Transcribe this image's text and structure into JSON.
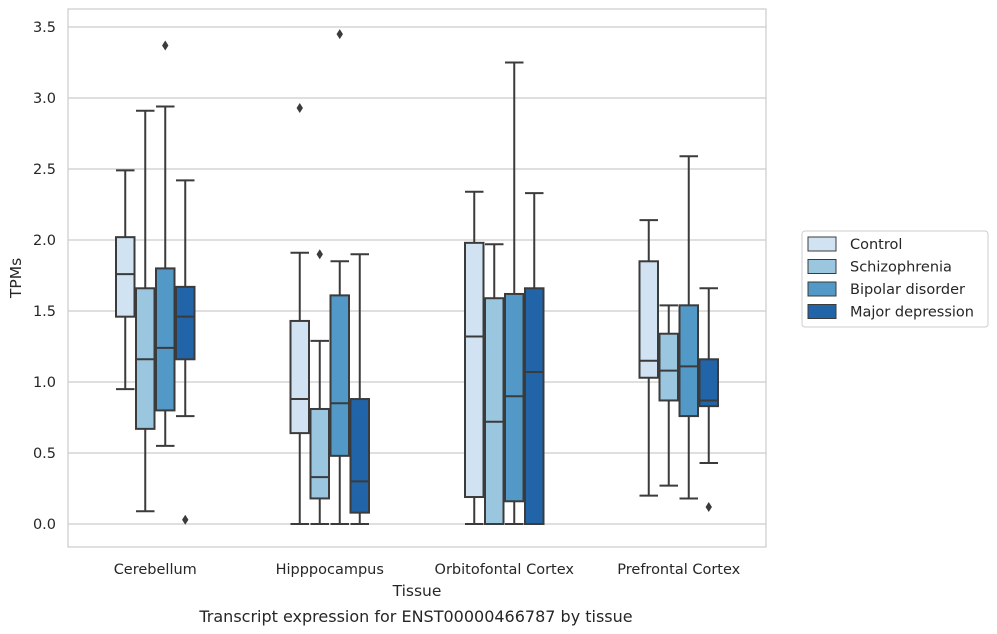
{
  "chart_data": {
    "type": "box",
    "title": "",
    "caption": "Transcript expression for ENST00000466787 by tissue",
    "xlabel": "Tissue",
    "ylabel": "TPMs",
    "ylim": [
      -0.17,
      3.62
    ],
    "yticks": [
      0.0,
      0.5,
      1.0,
      1.5,
      2.0,
      2.5,
      3.0,
      3.5
    ],
    "ytick_labels": [
      "0.0",
      "0.5",
      "1.0",
      "1.5",
      "2.0",
      "2.5",
      "3.0",
      "3.5"
    ],
    "grid": "horizontal",
    "legend_position": "right",
    "categories": [
      "Cerebellum",
      "Hipppocampus",
      "Orbitofontal Cortex",
      "Prefrontal Cortex"
    ],
    "series": [
      {
        "name": "Control",
        "color": "#d1e2f2",
        "boxes": [
          {
            "whisker_low": 0.95,
            "q1": 1.46,
            "median": 1.76,
            "q3": 2.02,
            "whisker_high": 2.49,
            "outliers": []
          },
          {
            "whisker_low": 0.0,
            "q1": 0.64,
            "median": 0.88,
            "q3": 1.43,
            "whisker_high": 1.91,
            "outliers": [
              2.93
            ]
          },
          {
            "whisker_low": 0.0,
            "q1": 0.19,
            "median": 1.32,
            "q3": 1.98,
            "whisker_high": 2.34,
            "outliers": []
          },
          {
            "whisker_low": 0.2,
            "q1": 1.03,
            "median": 1.15,
            "q3": 1.85,
            "whisker_high": 2.14,
            "outliers": []
          }
        ]
      },
      {
        "name": "Schizophrenia",
        "color": "#9ac7df",
        "boxes": [
          {
            "whisker_low": 0.09,
            "q1": 0.67,
            "median": 1.16,
            "q3": 1.66,
            "whisker_high": 2.91,
            "outliers": []
          },
          {
            "whisker_low": 0.0,
            "q1": 0.18,
            "median": 0.33,
            "q3": 0.81,
            "whisker_high": 1.29,
            "outliers": [
              1.9
            ]
          },
          {
            "whisker_low": 0.0,
            "q1": 0.0,
            "median": 0.72,
            "q3": 1.59,
            "whisker_high": 1.97,
            "outliers": []
          },
          {
            "whisker_low": 0.27,
            "q1": 0.87,
            "median": 1.08,
            "q3": 1.34,
            "whisker_high": 1.54,
            "outliers": []
          }
        ]
      },
      {
        "name": "Bipolar disorder",
        "color": "#5399c7",
        "boxes": [
          {
            "whisker_low": 0.55,
            "q1": 0.8,
            "median": 1.24,
            "q3": 1.8,
            "whisker_high": 2.94,
            "outliers": [
              3.37
            ]
          },
          {
            "whisker_low": 0.0,
            "q1": 0.48,
            "median": 0.85,
            "q3": 1.61,
            "whisker_high": 1.85,
            "outliers": [
              3.45
            ]
          },
          {
            "whisker_low": 0.0,
            "q1": 0.16,
            "median": 0.9,
            "q3": 1.62,
            "whisker_high": 3.25,
            "outliers": []
          },
          {
            "whisker_low": 0.18,
            "q1": 0.76,
            "median": 1.11,
            "q3": 1.54,
            "whisker_high": 2.59,
            "outliers": []
          }
        ]
      },
      {
        "name": "Major depression",
        "color": "#2164a8",
        "boxes": [
          {
            "whisker_low": 0.76,
            "q1": 1.16,
            "median": 1.46,
            "q3": 1.67,
            "whisker_high": 2.42,
            "outliers": [
              0.03
            ]
          },
          {
            "whisker_low": 0.0,
            "q1": 0.08,
            "median": 0.3,
            "q3": 0.88,
            "whisker_high": 1.9,
            "outliers": []
          },
          {
            "whisker_low": 0.0,
            "q1": 0.0,
            "median": 1.07,
            "q3": 1.66,
            "whisker_high": 2.33,
            "outliers": []
          },
          {
            "whisker_low": 0.43,
            "q1": 0.83,
            "median": 0.87,
            "q3": 1.16,
            "whisker_high": 1.66,
            "outliers": [
              0.12
            ]
          }
        ]
      }
    ]
  }
}
